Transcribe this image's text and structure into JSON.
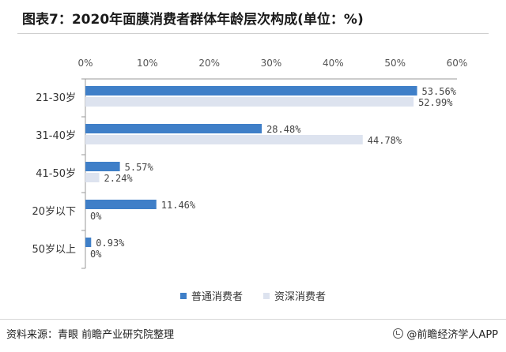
{
  "title": "图表7：2020年面膜消费者群体年龄层次构成(单位：%)",
  "source": "资料来源：青眼 前瞻产业研究院整理",
  "credit": "@前瞻经济学人APP",
  "colors": {
    "series1": "#3f7fc8",
    "series2": "#dde3ef",
    "grid": "#e3e3e3",
    "axis": "#999999"
  },
  "chart_data": {
    "type": "bar",
    "orientation": "horizontal",
    "categories": [
      "21-30岁",
      "31-40岁",
      "41-50岁",
      "20岁以下",
      "50岁以上"
    ],
    "series": [
      {
        "name": "普通消费者",
        "values": [
          53.56,
          28.48,
          5.57,
          11.46,
          0.93
        ],
        "labels": [
          "53.56%",
          "28.48%",
          "5.57%",
          "11.46%",
          "0.93%"
        ]
      },
      {
        "name": "资深消费者",
        "values": [
          52.99,
          44.78,
          2.24,
          0,
          0
        ],
        "labels": [
          "52.99%",
          "44.78%",
          "2.24%",
          "0%",
          "0%"
        ]
      }
    ],
    "xlim": [
      0,
      60
    ],
    "ticks": [
      "0%",
      "10%",
      "20%",
      "30%",
      "40%",
      "50%",
      "60%"
    ],
    "tick_values": [
      0,
      10,
      20,
      30,
      40,
      50,
      60
    ],
    "tick_position": "top",
    "grid": false,
    "legend_position": "bottom"
  }
}
